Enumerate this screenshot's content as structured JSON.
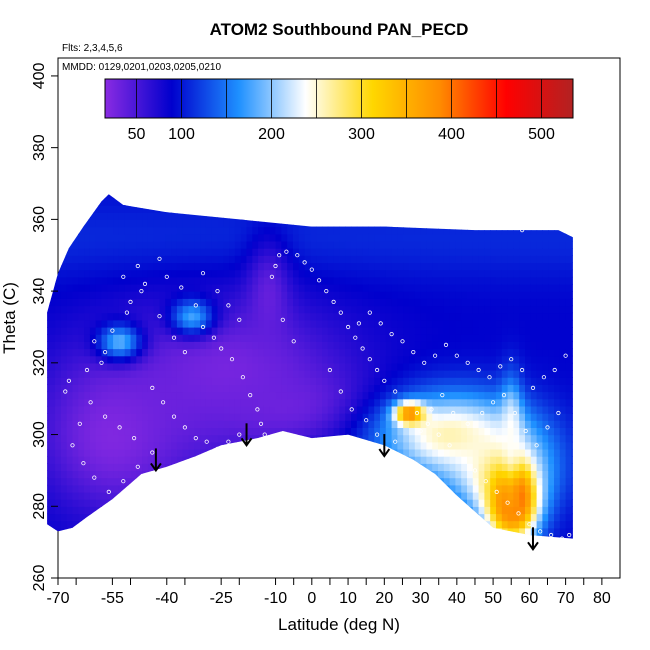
{
  "chart_data": {
    "type": "heatmap",
    "title": "ATOM2 Southbound PAN_PECD",
    "flights_label": "Flts: 2,3,4,5,6",
    "dates_label": "MMDD: 0129,0201,0203,0205,0210",
    "xlabel": "Latitude (deg N)",
    "ylabel": "Theta (C)",
    "xlim": [
      -70,
      85
    ],
    "ylim": [
      260,
      405
    ],
    "x_ticks": [
      -70,
      -55,
      -40,
      -25,
      -10,
      0,
      10,
      20,
      30,
      40,
      50,
      60,
      70,
      80
    ],
    "x_minor_ticks": [
      -65,
      -50,
      -35,
      -20,
      -5,
      5,
      15,
      25,
      35,
      45,
      55,
      65,
      75
    ],
    "y_ticks": [
      260,
      280,
      300,
      320,
      340,
      360,
      380,
      400
    ],
    "colorbar": {
      "range": [
        15,
        535
      ],
      "ticks": [
        50,
        100,
        200,
        300,
        400,
        500
      ],
      "separators": [
        50,
        100,
        150,
        200,
        250,
        300,
        350,
        400,
        450,
        500
      ],
      "colors": [
        "#8a2be2",
        "#0000cd",
        "#1e90ff",
        "#ffffff",
        "#ffd700",
        "#ff8c00",
        "#ff0000",
        "#b22222"
      ]
    },
    "arrows": [
      {
        "lat": -43,
        "theta": 290
      },
      {
        "lat": -18,
        "theta": 297
      },
      {
        "lat": 20,
        "theta": 294
      },
      {
        "lat": 61,
        "theta": 268
      }
    ],
    "domain_top": [
      [
        -73,
        334
      ],
      [
        -70,
        345
      ],
      [
        -67,
        352
      ],
      [
        -63,
        358
      ],
      [
        -58,
        365
      ],
      [
        -56,
        367
      ],
      [
        -52,
        364
      ],
      [
        -40,
        362
      ],
      [
        -20,
        360
      ],
      [
        0,
        358
      ],
      [
        20,
        358
      ],
      [
        45,
        357
      ],
      [
        68,
        357
      ],
      [
        72,
        355
      ]
    ],
    "domain_bottom": [
      [
        72,
        271
      ],
      [
        60,
        272
      ],
      [
        50,
        274
      ],
      [
        40,
        283
      ],
      [
        34,
        289
      ],
      [
        28,
        293
      ],
      [
        20,
        297
      ],
      [
        10,
        300
      ],
      [
        0,
        299
      ],
      [
        -8,
        301
      ],
      [
        -15,
        299
      ],
      [
        -25,
        297
      ],
      [
        -32,
        294
      ],
      [
        -40,
        291
      ],
      [
        -47,
        289
      ],
      [
        -55,
        282
      ],
      [
        -62,
        277
      ],
      [
        -66,
        274
      ],
      [
        -70,
        273
      ],
      [
        -73,
        275
      ]
    ],
    "field_base_value": 90,
    "field_features": [
      {
        "name": "purple-southern-low",
        "lat": -55,
        "theta": 300,
        "rx": 20,
        "ry": 22,
        "value": 20
      },
      {
        "name": "purple-central-low",
        "lat": -22,
        "theta": 318,
        "rx": 32,
        "ry": 20,
        "value": 25
      },
      {
        "name": "purple-column-low",
        "lat": -12,
        "theta": 338,
        "rx": 6,
        "ry": 16,
        "value": 35
      },
      {
        "name": "purple-column-base",
        "lat": -5,
        "theta": 308,
        "rx": 22,
        "ry": 10,
        "value": 30
      },
      {
        "name": "blue-south-patch",
        "lat": -53,
        "theta": 326,
        "rx": 6,
        "ry": 5,
        "value": 185
      },
      {
        "name": "blue-mid-patch",
        "lat": -33,
        "theta": 333,
        "rx": 6,
        "ry": 5,
        "value": 175
      },
      {
        "name": "light-blue-wedge",
        "lat": 38,
        "theta": 300,
        "rx": 20,
        "ry": 12,
        "value": 260
      },
      {
        "name": "light-north-base",
        "lat": 52,
        "theta": 290,
        "rx": 14,
        "ry": 13,
        "value": 260
      },
      {
        "name": "orange-mid-patch",
        "lat": 27,
        "theta": 306,
        "rx": 4,
        "ry": 3,
        "value": 395
      },
      {
        "name": "red-north-core",
        "lat": 56,
        "theta": 283,
        "rx": 4,
        "ry": 7,
        "value": 505
      },
      {
        "name": "orange-north-halo",
        "lat": 55,
        "theta": 280,
        "rx": 7,
        "ry": 10,
        "value": 400
      },
      {
        "name": "north-bright-stripe",
        "lat": 55,
        "theta": 300,
        "rx": 3,
        "ry": 14,
        "value": 240
      }
    ],
    "observation_points": [
      [
        -68,
        312
      ],
      [
        -67,
        315
      ],
      [
        -62,
        318
      ],
      [
        -58,
        320
      ],
      [
        -57,
        323
      ],
      [
        -60,
        326
      ],
      [
        -55,
        329
      ],
      [
        -51,
        334
      ],
      [
        -50,
        337
      ],
      [
        -47,
        340
      ],
      [
        -46,
        342
      ],
      [
        -52,
        344
      ],
      [
        -48,
        347
      ],
      [
        -42,
        349
      ],
      [
        -40,
        344
      ],
      [
        -36,
        341
      ],
      [
        -32,
        336
      ],
      [
        -30,
        330
      ],
      [
        -27,
        327
      ],
      [
        -25,
        324
      ],
      [
        -22,
        321
      ],
      [
        -19,
        316
      ],
      [
        -17,
        311
      ],
      [
        -15,
        307
      ],
      [
        -14,
        303
      ],
      [
        -13,
        300
      ],
      [
        -11,
        344
      ],
      [
        -10,
        347
      ],
      [
        -9,
        350
      ],
      [
        -7,
        351
      ],
      [
        -4,
        350
      ],
      [
        -2,
        348
      ],
      [
        0,
        346
      ],
      [
        2,
        343
      ],
      [
        4,
        340
      ],
      [
        6,
        337
      ],
      [
        8,
        334
      ],
      [
        10,
        330
      ],
      [
        12,
        327
      ],
      [
        14,
        324
      ],
      [
        16,
        321
      ],
      [
        18,
        318
      ],
      [
        20,
        315
      ],
      [
        23,
        312
      ],
      [
        26,
        309
      ],
      [
        29,
        306
      ],
      [
        32,
        303
      ],
      [
        35,
        300
      ],
      [
        38,
        297
      ],
      [
        42,
        293
      ],
      [
        45,
        290
      ],
      [
        48,
        287
      ],
      [
        51,
        284
      ],
      [
        54,
        281
      ],
      [
        57,
        278
      ],
      [
        60,
        275
      ],
      [
        63,
        273
      ],
      [
        66,
        272
      ],
      [
        69,
        271
      ],
      [
        71,
        272
      ],
      [
        70,
        322
      ],
      [
        67,
        318
      ],
      [
        64,
        316
      ],
      [
        61,
        313
      ],
      [
        58,
        318
      ],
      [
        55,
        321
      ],
      [
        52,
        319
      ],
      [
        49,
        316
      ],
      [
        46,
        318
      ],
      [
        43,
        320
      ],
      [
        40,
        322
      ],
      [
        37,
        325
      ],
      [
        34,
        322
      ],
      [
        31,
        320
      ],
      [
        28,
        323
      ],
      [
        25,
        326
      ],
      [
        22,
        328
      ],
      [
        19,
        331
      ],
      [
        16,
        334
      ],
      [
        13,
        331
      ],
      [
        -44,
        313
      ],
      [
        -41,
        309
      ],
      [
        -38,
        305
      ],
      [
        -35,
        302
      ],
      [
        -32,
        299
      ],
      [
        -29,
        298
      ],
      [
        -26,
        296
      ],
      [
        -23,
        298
      ],
      [
        -20,
        300
      ],
      [
        -44,
        295
      ],
      [
        -49,
        299
      ],
      [
        -53,
        302
      ],
      [
        -57,
        305
      ],
      [
        -61,
        309
      ],
      [
        -64,
        303
      ],
      [
        -66,
        297
      ],
      [
        -63,
        292
      ],
      [
        -60,
        288
      ],
      [
        -56,
        284
      ],
      [
        -52,
        287
      ],
      [
        -48,
        291
      ],
      [
        -42,
        333
      ],
      [
        -38,
        327
      ],
      [
        -35,
        323
      ],
      [
        -30,
        345
      ],
      [
        -26,
        340
      ],
      [
        -23,
        336
      ],
      [
        -20,
        332
      ],
      [
        5,
        318
      ],
      [
        8,
        312
      ],
      [
        11,
        307
      ],
      [
        15,
        304
      ],
      [
        18,
        300
      ],
      [
        23,
        298
      ],
      [
        30,
        301
      ],
      [
        33,
        307
      ],
      [
        36,
        311
      ],
      [
        39,
        306
      ],
      [
        43,
        303
      ],
      [
        47,
        306
      ],
      [
        50,
        309
      ],
      [
        53,
        311
      ],
      [
        56,
        306
      ],
      [
        59,
        301
      ],
      [
        62,
        297
      ],
      [
        65,
        302
      ],
      [
        68,
        306
      ],
      [
        58,
        357
      ],
      [
        -8,
        332
      ],
      [
        -5,
        326
      ]
    ]
  }
}
